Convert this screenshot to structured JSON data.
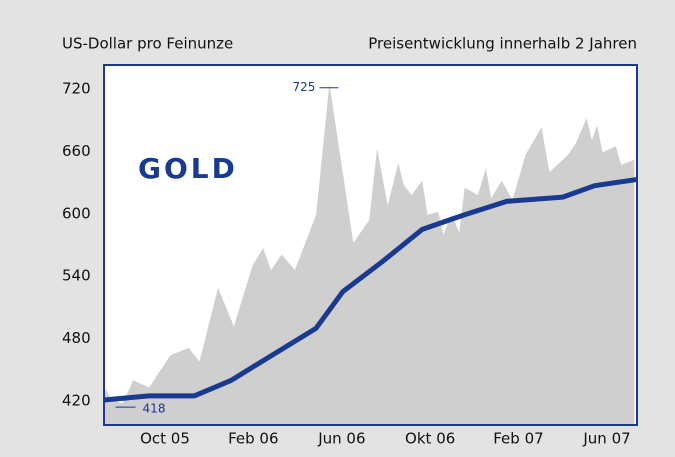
{
  "chart_data": {
    "type": "line",
    "title": "GOLD",
    "y_label": "US-Dollar pro Feinunze",
    "subtitle": "Preisentwicklung innerhalb 2 Jahren",
    "xlim": [
      2005.52,
      2007.53
    ],
    "xticks": [
      {
        "value": 2005.75,
        "label": "Oct 05"
      },
      {
        "value": 2006.083,
        "label": "Feb 06"
      },
      {
        "value": 2006.417,
        "label": "Jun 06"
      },
      {
        "value": 2006.75,
        "label": "Okt 06"
      },
      {
        "value": 2007.083,
        "label": "Feb 07"
      },
      {
        "value": 2007.417,
        "label": "Jun 07"
      }
    ],
    "ylim": [
      397,
      743
    ],
    "yticks": [
      420,
      480,
      540,
      600,
      660,
      720
    ],
    "grid": false,
    "series": [
      {
        "kind": "area",
        "color": "#cfcfcf",
        "x": [
          2005.52,
          2005.55,
          2005.59,
          2005.63,
          2005.69,
          2005.77,
          2005.84,
          2005.88,
          2005.95,
          2006.01,
          2006.08,
          2006.12,
          2006.15,
          2006.19,
          2006.24,
          2006.32,
          2006.37,
          2006.46,
          2006.52,
          2006.55,
          2006.59,
          2006.63,
          2006.65,
          2006.68,
          2006.72,
          2006.74,
          2006.78,
          2006.8,
          2006.83,
          2006.86,
          2006.88,
          2006.93,
          2006.96,
          2006.98,
          2007.02,
          2007.06,
          2007.11,
          2007.17,
          2007.2,
          2007.27,
          2007.3,
          2007.34,
          2007.36,
          2007.38,
          2007.4,
          2007.45,
          2007.47,
          2007.52
        ],
        "values": [
          433,
          421,
          418,
          440,
          433,
          464,
          471,
          458,
          529,
          492,
          550,
          567,
          546,
          561,
          546,
          599,
          725,
          572,
          594,
          663,
          608,
          649,
          628,
          618,
          632,
          599,
          602,
          580,
          599,
          582,
          625,
          618,
          644,
          615,
          632,
          613,
          657,
          683,
          640,
          657,
          668,
          692,
          671,
          685,
          659,
          665,
          647,
          652
        ]
      },
      {
        "kind": "line",
        "color": "#1a3a8f",
        "x": [
          2005.52,
          2005.69,
          2005.86,
          2006.0,
          2006.16,
          2006.32,
          2006.42,
          2006.57,
          2006.72,
          2006.88,
          2007.04,
          2007.25,
          2007.37,
          2007.53
        ],
        "values": [
          421,
          425,
          425,
          440,
          465,
          490,
          525,
          554,
          585,
          599,
          612,
          616,
          627,
          633
        ]
      }
    ],
    "annotations": [
      "725",
      "418"
    ]
  }
}
